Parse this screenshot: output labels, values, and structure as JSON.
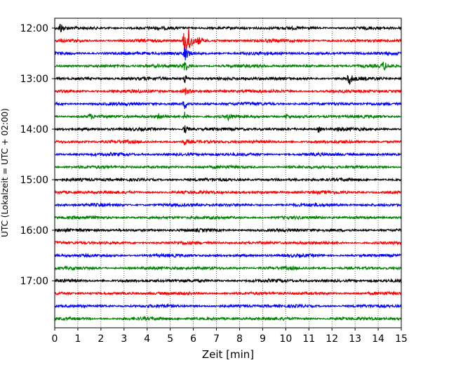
{
  "chart_data": {
    "type": "line",
    "title": "",
    "xlabel": "Zeit  [min]",
    "ylabel": "UTC (Lokalzeit = UTC + 02:00)",
    "xlim": [
      0,
      15
    ],
    "x_ticks": [
      0,
      1,
      2,
      3,
      4,
      5,
      6,
      7,
      8,
      9,
      10,
      11,
      12,
      13,
      14,
      15
    ],
    "y_ticks": [
      "12:00",
      "13:00",
      "14:00",
      "15:00",
      "16:00",
      "17:00"
    ],
    "grid": "vertical dotted",
    "line_interval_minutes": 15,
    "start_time": "12:00",
    "end_time": "17:45",
    "trace_colors": [
      "#000000",
      "#ff0000",
      "#0000ff",
      "#008000"
    ],
    "events": [
      {
        "trace": "12:00",
        "minute": 0.2,
        "amplitude": 10
      },
      {
        "trace": "12:15",
        "minute": 5.6,
        "amplitude": 34
      },
      {
        "trace": "12:15",
        "minute": 5.8,
        "amplitude": 18
      },
      {
        "trace": "12:15",
        "minute": 6.2,
        "amplitude": 6
      },
      {
        "trace": "12:30",
        "minute": 5.6,
        "amplitude": 14
      },
      {
        "trace": "12:45",
        "minute": 5.6,
        "amplitude": 10
      },
      {
        "trace": "12:45",
        "minute": 14.2,
        "amplitude": 7
      },
      {
        "trace": "13:00",
        "minute": 5.6,
        "amplitude": 8
      },
      {
        "trace": "13:00",
        "minute": 12.7,
        "amplitude": 12
      },
      {
        "trace": "13:15",
        "minute": 5.6,
        "amplitude": 8
      },
      {
        "trace": "13:30",
        "minute": 5.6,
        "amplitude": 8
      },
      {
        "trace": "13:45",
        "minute": 5.6,
        "amplitude": 7
      },
      {
        "trace": "13:45",
        "minute": 1.5,
        "amplitude": 4
      },
      {
        "trace": "13:45",
        "minute": 4.5,
        "amplitude": 4
      },
      {
        "trace": "13:45",
        "minute": 7.5,
        "amplitude": 4
      },
      {
        "trace": "13:45",
        "minute": 10.0,
        "amplitude": 4
      },
      {
        "trace": "14:00",
        "minute": 5.6,
        "amplitude": 8
      },
      {
        "trace": "14:00",
        "minute": 11.4,
        "amplitude": 4
      },
      {
        "trace": "14:00",
        "minute": 12.2,
        "amplitude": 3
      },
      {
        "trace": "14:15",
        "minute": 5.6,
        "amplitude": 5
      }
    ]
  }
}
